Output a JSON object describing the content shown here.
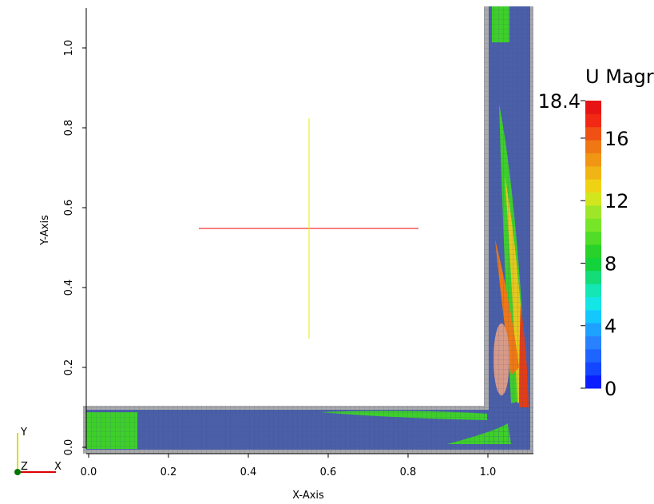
{
  "chart_data": {
    "type": "field",
    "xlabel": "X-Axis",
    "ylabel": "Y-Axis",
    "xlim": [
      0,
      1.1
    ],
    "ylim": [
      0,
      1.1
    ],
    "xticks": [
      {
        "value": 0,
        "label": "0.0"
      },
      0.2,
      0.4,
      0.6,
      0.8,
      {
        "value": 1,
        "label": "1.0"
      }
    ],
    "yticks": [
      {
        "value": 0,
        "label": "0.0"
      },
      0.2,
      0.4,
      0.6,
      0.8,
      {
        "value": 1,
        "label": "1.0"
      }
    ],
    "colorbar": {
      "title": "U Magr",
      "lim": [
        0,
        18.4
      ],
      "ticks": [
        0,
        4,
        8,
        12,
        16,
        18.4
      ],
      "colors": [
        "#0a1eff",
        "#1446ff",
        "#1e64ff",
        "#2882ff",
        "#1ea0ff",
        "#14c8ff",
        "#14e6e6",
        "#14e6b4",
        "#14dc78",
        "#14d23c",
        "#28d228",
        "#50dc28",
        "#78e628",
        "#a0e628",
        "#d2e61e",
        "#f0d214",
        "#f0b414",
        "#f09614",
        "#f07814",
        "#f05014",
        "#f02814",
        "#e61414"
      ]
    },
    "triad": {
      "y": "Y",
      "z": "Z",
      "x": "X"
    }
  }
}
